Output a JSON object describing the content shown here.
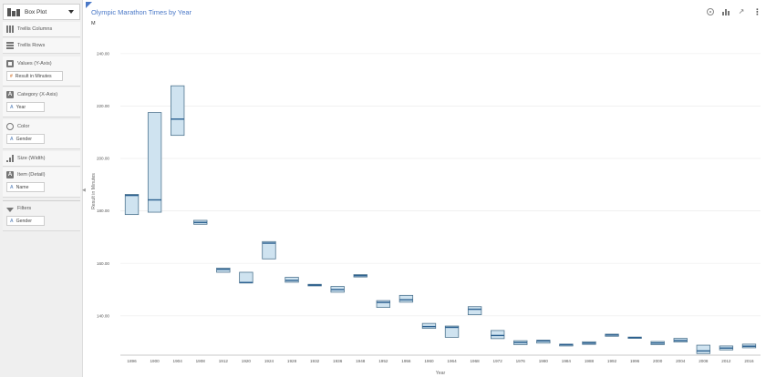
{
  "sidebar": {
    "chart_type": "Box Plot",
    "shelves": {
      "trellis_columns": "Trellis Columns",
      "trellis_rows": "Trellis Rows",
      "values": {
        "label": "Values (Y-Axis)",
        "pill": "Result in Minutes"
      },
      "category": {
        "label": "Category (X-Axis)",
        "pill": "Year"
      },
      "color": {
        "label": "Color",
        "pill": "Gender"
      },
      "size": {
        "label": "Size (Width)"
      },
      "item": {
        "label": "Item (Detail)",
        "pill": "Name"
      },
      "filters": {
        "label": "Filters",
        "pill": "Gender"
      }
    },
    "pill_type_glyphs": {
      "attribute": "A",
      "measure": "#"
    }
  },
  "chart": {
    "title": "Olympic Marathon Times by Year",
    "trellis_label": "M"
  },
  "colors": {
    "box_fill": "#cfe3f0",
    "box_stroke": "#4f7590",
    "median": "#2a5f8f",
    "accent": "#4a78c7"
  },
  "chart_data": {
    "type": "boxplot",
    "title": "Olympic Marathon Times by Year",
    "xlabel": "Year",
    "ylabel": "Result in Minutes",
    "ylim": [
      125,
      250
    ],
    "yticks": [
      140,
      160,
      180,
      200,
      220,
      240
    ],
    "ytick_labels": [
      "140.00",
      "160.00",
      "180.00",
      "200.00",
      "220.00",
      "240.00"
    ],
    "grid": true,
    "categories": [
      "1896",
      "1900",
      "1904",
      "1908",
      "1912",
      "1920",
      "1924",
      "1928",
      "1932",
      "1936",
      "1948",
      "1952",
      "1956",
      "1960",
      "1964",
      "1968",
      "1972",
      "1976",
      "1980",
      "1984",
      "1988",
      "1992",
      "1996",
      "2000",
      "2004",
      "2008",
      "2012",
      "2016"
    ],
    "boxes": [
      {
        "q1": 178.6,
        "median": 185.9,
        "q3": 186.3
      },
      {
        "q1": 179.5,
        "median": 184.2,
        "q3": 217.5
      },
      {
        "q1": 208.8,
        "median": 215.0,
        "q3": 227.7
      },
      {
        "q1": 174.9,
        "median": 175.6,
        "q3": 176.4
      },
      {
        "q1": 156.6,
        "median": 157.7,
        "q3": 158.2
      },
      {
        "q1": 152.5,
        "median": 152.7,
        "q3": 156.6
      },
      {
        "q1": 161.7,
        "median": 167.7,
        "q3": 168.3
      },
      {
        "q1": 152.8,
        "median": 153.5,
        "q3": 154.7
      },
      {
        "q1": 151.4,
        "median": 151.7,
        "q3": 152.0
      },
      {
        "q1": 149.0,
        "median": 150.0,
        "q3": 151.2
      },
      {
        "q1": 154.8,
        "median": 155.3,
        "q3": 155.7
      },
      {
        "q1": 143.2,
        "median": 145.1,
        "q3": 145.8
      },
      {
        "q1": 145.2,
        "median": 146.1,
        "q3": 147.8
      },
      {
        "q1": 135.2,
        "median": 135.9,
        "q3": 137.1
      },
      {
        "q1": 131.8,
        "median": 135.6,
        "q3": 136.1
      },
      {
        "q1": 140.4,
        "median": 142.5,
        "q3": 143.5
      },
      {
        "q1": 131.3,
        "median": 132.5,
        "q3": 134.4
      },
      {
        "q1": 129.0,
        "median": 129.8,
        "q3": 130.5
      },
      {
        "q1": 129.6,
        "median": 130.4,
        "q3": 130.7
      },
      {
        "q1": 128.5,
        "median": 129.0,
        "q3": 129.2
      },
      {
        "q1": 129.1,
        "median": 129.6,
        "q3": 130.1
      },
      {
        "q1": 132.2,
        "median": 132.7,
        "q3": 133.0
      },
      {
        "q1": 131.4,
        "median": 131.7,
        "q3": 131.9
      },
      {
        "q1": 129.0,
        "median": 129.6,
        "q3": 130.2
      },
      {
        "q1": 130.0,
        "median": 130.6,
        "q3": 131.4
      },
      {
        "q1": 125.6,
        "median": 126.6,
        "q3": 128.8
      },
      {
        "q1": 127.0,
        "median": 127.7,
        "q3": 128.5
      },
      {
        "q1": 127.8,
        "median": 128.4,
        "q3": 129.2
      }
    ]
  }
}
